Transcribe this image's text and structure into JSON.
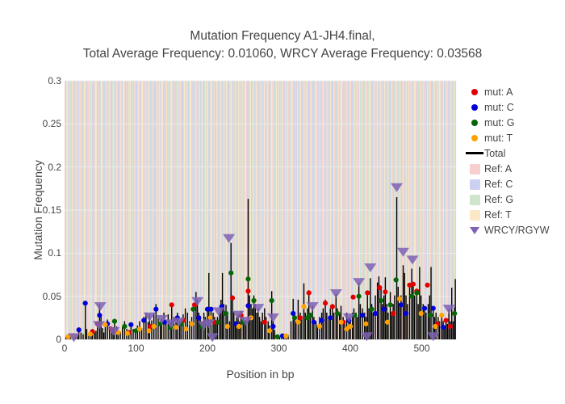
{
  "title": {
    "line1": "Mutation Frequency A1-JH4.final,",
    "line2": "Total Average Frequency: 0.01060, WRCY Average Frequency: 0.03568"
  },
  "chart_data": {
    "type": "line",
    "subtype": "stem-plot with scatter markers and reference-base background stripes",
    "title": "Mutation Frequency A1-JH4.final, Total Average Frequency: 0.01060, WRCY Average Frequency: 0.03568",
    "xlabel": "Position in bp",
    "ylabel": "Mutation Frequency",
    "xlim": [
      0,
      548
    ],
    "ylim": [
      0,
      0.3
    ],
    "xticks": [
      0,
      100,
      200,
      300,
      400,
      500
    ],
    "yticks": [
      0,
      0.05,
      0.1,
      0.15,
      0.2,
      0.25,
      0.3
    ],
    "ytick_labels": [
      "0",
      "0.05",
      "0.1",
      "0.15",
      "0.2",
      "0.25",
      "0.3"
    ],
    "grid": true,
    "grid_color": "#ececec",
    "legend_position": "right",
    "legend": [
      {
        "label": "mut: A",
        "marker": "dot",
        "color": "#e00000"
      },
      {
        "label": "mut: C",
        "marker": "dot",
        "color": "#0000d8"
      },
      {
        "label": "mut: G",
        "marker": "dot",
        "color": "#056605"
      },
      {
        "label": "mut: T",
        "marker": "dot",
        "color": "#ffa200"
      },
      {
        "label": "Total",
        "marker": "line",
        "color": "#000000"
      },
      {
        "label": "Ref: A",
        "marker": "square",
        "color": "#f6cfcf"
      },
      {
        "label": "Ref: C",
        "marker": "square",
        "color": "#ccd0f3"
      },
      {
        "label": "Ref: G",
        "marker": "square",
        "color": "#cfe4cc"
      },
      {
        "label": "Ref: T",
        "marker": "square",
        "color": "#fae8c6"
      },
      {
        "label": "WRCY/RGYW",
        "marker": "triangle",
        "color": "#7e62b5"
      }
    ],
    "mut_colors": {
      "A": "#e00000",
      "C": "#0000d8",
      "G": "#056605",
      "T": "#ffa200"
    },
    "ref_colors": {
      "A": "#f6cfcf",
      "C": "#ccd0f3",
      "G": "#cfe4cc",
      "T": "#fae8c6"
    },
    "wrcy_color": "#7e62b5",
    "total_color": "#000000",
    "ref_seq": "ACGTTCAGGCTAACGGATCCGTAACGCTTGACGATCGTACCAGTTGCAACGTTACGCATCGGATACCGTGCAATGCCGTAGCTTACAGCGTATCGGACTACCGTAGACTTGCAATCGGTACGCTAGCCATGGATCGTTACAGCTAGGCATTGCAACGGATCGTACCGATGCTAGCGTTACAGGCTAACGTGCATCCGATGATCCGTTGCAAGCTAGCGATACGGTCATGCCAGTTACGGATCGCTAAGCTGCATTACCGAGTCGATCGGTAACGCTAGCATGCGATACCGTTAGGCATCGTACGGATCCATGCTAGCGTTAACGGCATCGATACGCTAGGTACCGATGCACGTTAGCATCGGATACGCTAGCATGCCGTAACGGATCGTTACAGCTAGCGATACCGGTCATGCATGCTAGCGATACGGTTACCGAGTCATCGGATACGCTAGCATGCCGTAACGGATCGCTAGCATACGGTCATGCTAGCGTTAACGGCATCGATACGCTAGGTACCGATGCATCGTTAGCATCGGATACGCTAGCATGC",
    "total": [
      [
        2,
        0.003
      ],
      [
        5,
        0.004
      ],
      [
        8,
        0.003
      ],
      [
        12,
        0.004
      ],
      [
        15,
        0.003
      ],
      [
        18,
        0.005
      ],
      [
        20,
        0.012
      ],
      [
        23,
        0.008
      ],
      [
        26,
        0.006
      ],
      [
        29,
        0.042
      ],
      [
        31,
        0.012
      ],
      [
        34,
        0.007
      ],
      [
        37,
        0.005
      ],
      [
        39,
        0.012
      ],
      [
        42,
        0.008
      ],
      [
        44,
        0.01
      ],
      [
        46,
        0.02
      ],
      [
        49,
        0.041
      ],
      [
        51,
        0.026
      ],
      [
        53,
        0.013
      ],
      [
        55,
        0.008
      ],
      [
        57,
        0.019
      ],
      [
        60,
        0.023
      ],
      [
        63,
        0.015
      ],
      [
        66,
        0.01
      ],
      [
        68,
        0.014
      ],
      [
        70,
        0.022
      ],
      [
        73,
        0.015
      ],
      [
        75,
        0.01
      ],
      [
        78,
        0.009
      ],
      [
        81,
        0.014
      ],
      [
        84,
        0.021
      ],
      [
        87,
        0.012
      ],
      [
        90,
        0.009
      ],
      [
        93,
        0.019
      ],
      [
        96,
        0.012
      ],
      [
        99,
        0.008
      ],
      [
        102,
        0.016
      ],
      [
        105,
        0.021
      ],
      [
        108,
        0.013
      ],
      [
        111,
        0.026
      ],
      [
        114,
        0.031
      ],
      [
        117,
        0.02
      ],
      [
        119,
        0.029
      ],
      [
        122,
        0.022
      ],
      [
        125,
        0.031
      ],
      [
        128,
        0.041
      ],
      [
        131,
        0.025
      ],
      [
        134,
        0.018
      ],
      [
        136,
        0.024
      ],
      [
        139,
        0.031
      ],
      [
        142,
        0.02
      ],
      [
        145,
        0.029
      ],
      [
        148,
        0.02
      ],
      [
        150,
        0.042
      ],
      [
        153,
        0.026
      ],
      [
        156,
        0.02
      ],
      [
        158,
        0.031
      ],
      [
        161,
        0.022
      ],
      [
        163,
        0.02
      ],
      [
        166,
        0.029
      ],
      [
        169,
        0.036
      ],
      [
        172,
        0.031
      ],
      [
        175,
        0.021
      ],
      [
        178,
        0.026
      ],
      [
        181,
        0.041
      ],
      [
        184,
        0.055
      ],
      [
        186,
        0.046
      ],
      [
        188,
        0.031
      ],
      [
        190,
        0.026
      ],
      [
        192,
        0.021
      ],
      [
        195,
        0.031
      ],
      [
        197,
        0.026
      ],
      [
        200,
        0.037
      ],
      [
        202,
        0.077
      ],
      [
        205,
        0.037
      ],
      [
        208,
        0.031
      ],
      [
        210,
        0.026
      ],
      [
        212,
        0.021
      ],
      [
        214,
        0.026
      ],
      [
        217,
        0.031
      ],
      [
        219,
        0.046
      ],
      [
        221,
        0.077
      ],
      [
        223,
        0.041
      ],
      [
        226,
        0.04
      ],
      [
        228,
        0.031
      ],
      [
        231,
        0.021
      ],
      [
        233,
        0.112
      ],
      [
        235,
        0.051
      ],
      [
        237,
        0.032
      ],
      [
        239,
        0.021
      ],
      [
        241,
        0.026
      ],
      [
        243,
        0.029
      ],
      [
        245,
        0.021
      ],
      [
        247,
        0.033
      ],
      [
        250,
        0.026
      ],
      [
        252,
        0.021
      ],
      [
        254,
        0.022
      ],
      [
        257,
        0.163
      ],
      [
        259,
        0.051
      ],
      [
        261,
        0.041
      ],
      [
        263,
        0.036
      ],
      [
        265,
        0.051
      ],
      [
        267,
        0.041
      ],
      [
        269,
        0.031
      ],
      [
        271,
        0.036
      ],
      [
        273,
        0.026
      ],
      [
        275,
        0.021
      ],
      [
        277,
        0.031
      ],
      [
        280,
        0.036
      ],
      [
        282,
        0.026
      ],
      [
        285,
        0.021
      ],
      [
        287,
        0.016
      ],
      [
        290,
        0.056
      ],
      [
        292,
        0.021
      ],
      [
        294,
        0.011
      ],
      [
        298,
        0.004
      ],
      [
        301,
        0.003
      ],
      [
        304,
        0.005
      ],
      [
        307,
        0.003
      ],
      [
        310,
        0.004
      ],
      [
        313,
        0.005
      ],
      [
        317,
        0.021
      ],
      [
        320,
        0.047
      ],
      [
        322,
        0.031
      ],
      [
        324,
        0.021
      ],
      [
        327,
        0.046
      ],
      [
        330,
        0.031
      ],
      [
        332,
        0.026
      ],
      [
        335,
        0.065
      ],
      [
        337,
        0.031
      ],
      [
        340,
        0.036
      ],
      [
        342,
        0.055
      ],
      [
        344,
        0.031
      ],
      [
        347,
        0.039
      ],
      [
        349,
        0.026
      ],
      [
        352,
        0.021
      ],
      [
        354,
        0.016
      ],
      [
        357,
        0.026
      ],
      [
        360,
        0.031
      ],
      [
        362,
        0.036
      ],
      [
        365,
        0.046
      ],
      [
        367,
        0.031
      ],
      [
        370,
        0.026
      ],
      [
        372,
        0.036
      ],
      [
        375,
        0.041
      ],
      [
        377,
        0.031
      ],
      [
        380,
        0.053
      ],
      [
        382,
        0.036
      ],
      [
        385,
        0.031
      ],
      [
        387,
        0.039
      ],
      [
        390,
        0.026
      ],
      [
        392,
        0.021
      ],
      [
        395,
        0.031
      ],
      [
        398,
        0.026
      ],
      [
        400,
        0.021
      ],
      [
        403,
        0.031
      ],
      [
        405,
        0.036
      ],
      [
        408,
        0.031
      ],
      [
        410,
        0.026
      ],
      [
        412,
        0.066
      ],
      [
        414,
        0.041
      ],
      [
        417,
        0.036
      ],
      [
        420,
        0.031
      ],
      [
        422,
        0.026
      ],
      [
        424,
        0.055
      ],
      [
        426,
        0.036
      ],
      [
        428,
        0.071
      ],
      [
        430,
        0.041
      ],
      [
        432,
        0.031
      ],
      [
        435,
        0.051
      ],
      [
        438,
        0.066
      ],
      [
        440,
        0.073
      ],
      [
        443,
        0.061
      ],
      [
        445,
        0.041
      ],
      [
        447,
        0.051
      ],
      [
        449,
        0.072
      ],
      [
        451,
        0.041
      ],
      [
        453,
        0.031
      ],
      [
        456,
        0.055
      ],
      [
        458,
        0.031
      ],
      [
        460,
        0.041
      ],
      [
        462,
        0.051
      ],
      [
        465,
        0.165
      ],
      [
        467,
        0.061
      ],
      [
        469,
        0.041
      ],
      [
        471,
        0.051
      ],
      [
        474,
        0.086
      ],
      [
        476,
        0.077
      ],
      [
        478,
        0.051
      ],
      [
        480,
        0.041
      ],
      [
        483,
        0.063
      ],
      [
        486,
        0.082
      ],
      [
        488,
        0.064
      ],
      [
        490,
        0.051
      ],
      [
        493,
        0.056
      ],
      [
        495,
        0.041
      ],
      [
        497,
        0.084
      ],
      [
        499,
        0.051
      ],
      [
        502,
        0.041
      ],
      [
        504,
        0.036
      ],
      [
        506,
        0.031
      ],
      [
        509,
        0.041
      ],
      [
        511,
        0.051
      ],
      [
        513,
        0.084
      ],
      [
        516,
        0.036
      ],
      [
        518,
        0.026
      ],
      [
        520,
        0.031
      ],
      [
        523,
        0.026
      ],
      [
        525,
        0.021
      ],
      [
        528,
        0.028
      ],
      [
        530,
        0.021
      ],
      [
        532,
        0.016
      ],
      [
        534,
        0.022
      ],
      [
        536,
        0.018
      ],
      [
        538,
        0.035
      ],
      [
        540,
        0.021
      ],
      [
        542,
        0.06
      ],
      [
        544,
        0.021
      ],
      [
        546,
        0.037
      ],
      [
        547,
        0.07
      ]
    ],
    "mut_a": [
      [
        39,
        0.009
      ],
      [
        46,
        0.018
      ],
      [
        65,
        0.012
      ],
      [
        90,
        0.008
      ],
      [
        120,
        0.015
      ],
      [
        150,
        0.04
      ],
      [
        166,
        0.022
      ],
      [
        182,
        0.04
      ],
      [
        210,
        0.02
      ],
      [
        235,
        0.048
      ],
      [
        247,
        0.028
      ],
      [
        257,
        0.056
      ],
      [
        280,
        0.02
      ],
      [
        330,
        0.025
      ],
      [
        342,
        0.054
      ],
      [
        365,
        0.042
      ],
      [
        375,
        0.038
      ],
      [
        390,
        0.02
      ],
      [
        404,
        0.049
      ],
      [
        424,
        0.054
      ],
      [
        441,
        0.06
      ],
      [
        449,
        0.055
      ],
      [
        460,
        0.03
      ],
      [
        483,
        0.063
      ],
      [
        488,
        0.064
      ],
      [
        493,
        0.056
      ],
      [
        508,
        0.063
      ],
      [
        522,
        0.018
      ],
      [
        534,
        0.022
      ],
      [
        540,
        0.015
      ]
    ],
    "mut_c": [
      [
        20,
        0.011
      ],
      [
        29,
        0.042
      ],
      [
        49,
        0.028
      ],
      [
        60,
        0.018
      ],
      [
        93,
        0.017
      ],
      [
        111,
        0.022
      ],
      [
        128,
        0.035
      ],
      [
        140,
        0.02
      ],
      [
        158,
        0.025
      ],
      [
        188,
        0.025
      ],
      [
        200,
        0.035
      ],
      [
        205,
        0.035
      ],
      [
        220,
        0.038
      ],
      [
        240,
        0.018
      ],
      [
        257,
        0.039
      ],
      [
        292,
        0.015
      ],
      [
        305,
        0.004
      ],
      [
        320,
        0.03
      ],
      [
        349,
        0.02
      ],
      [
        360,
        0.022
      ],
      [
        372,
        0.025
      ],
      [
        398,
        0.022
      ],
      [
        417,
        0.028
      ],
      [
        435,
        0.03
      ],
      [
        447,
        0.035
      ],
      [
        471,
        0.04
      ],
      [
        478,
        0.03
      ],
      [
        504,
        0.036
      ],
      [
        516,
        0.036
      ],
      [
        530,
        0.014
      ]
    ],
    "mut_g": [
      [
        70,
        0.021
      ],
      [
        84,
        0.015
      ],
      [
        100,
        0.01
      ],
      [
        134,
        0.018
      ],
      [
        148,
        0.014
      ],
      [
        163,
        0.018
      ],
      [
        180,
        0.035
      ],
      [
        192,
        0.015
      ],
      [
        215,
        0.02
      ],
      [
        226,
        0.03
      ],
      [
        233,
        0.077
      ],
      [
        250,
        0.02
      ],
      [
        257,
        0.07
      ],
      [
        265,
        0.045
      ],
      [
        290,
        0.045
      ],
      [
        298,
        0.003
      ],
      [
        322,
        0.025
      ],
      [
        340,
        0.025
      ],
      [
        344,
        0.028
      ],
      [
        382,
        0.03
      ],
      [
        406,
        0.028
      ],
      [
        412,
        0.05
      ],
      [
        430,
        0.035
      ],
      [
        443,
        0.045
      ],
      [
        456,
        0.04
      ],
      [
        464,
        0.069
      ],
      [
        486,
        0.05
      ],
      [
        493,
        0.054
      ],
      [
        512,
        0.028
      ],
      [
        546,
        0.03
      ]
    ],
    "mut_t": [
      [
        5,
        0.003
      ],
      [
        12,
        0.004
      ],
      [
        36,
        0.006
      ],
      [
        57,
        0.017
      ],
      [
        75,
        0.008
      ],
      [
        88,
        0.007
      ],
      [
        105,
        0.012
      ],
      [
        118,
        0.01
      ],
      [
        125,
        0.015
      ],
      [
        156,
        0.014
      ],
      [
        170,
        0.012
      ],
      [
        178,
        0.018
      ],
      [
        204,
        0.025
      ],
      [
        228,
        0.015
      ],
      [
        244,
        0.015
      ],
      [
        261,
        0.025
      ],
      [
        287,
        0.01
      ],
      [
        310,
        0.004
      ],
      [
        327,
        0.02
      ],
      [
        335,
        0.038
      ],
      [
        357,
        0.015
      ],
      [
        387,
        0.02
      ],
      [
        395,
        0.012
      ],
      [
        400,
        0.015
      ],
      [
        422,
        0.018
      ],
      [
        452,
        0.02
      ],
      [
        469,
        0.047
      ],
      [
        499,
        0.03
      ],
      [
        519,
        0.015
      ],
      [
        528,
        0.028
      ]
    ],
    "wrcy": [
      [
        13,
        0.002
      ],
      [
        48,
        0.016
      ],
      [
        50,
        0.038
      ],
      [
        69,
        0.009
      ],
      [
        119,
        0.026
      ],
      [
        136,
        0.023
      ],
      [
        149,
        0.018
      ],
      [
        160,
        0.02
      ],
      [
        186,
        0.044
      ],
      [
        195,
        0.016
      ],
      [
        202,
        0.018
      ],
      [
        207,
        0.002
      ],
      [
        216,
        0.032
      ],
      [
        230,
        0.117
      ],
      [
        243,
        0.028
      ],
      [
        254,
        0.021
      ],
      [
        271,
        0.036
      ],
      [
        292,
        0.025
      ],
      [
        347,
        0.038
      ],
      [
        380,
        0.053
      ],
      [
        398,
        0.025
      ],
      [
        412,
        0.066
      ],
      [
        423,
        0.003
      ],
      [
        428,
        0.083
      ],
      [
        465,
        0.176
      ],
      [
        474,
        0.101
      ],
      [
        487,
        0.092
      ],
      [
        516,
        0.003
      ],
      [
        538,
        0.035
      ]
    ]
  }
}
